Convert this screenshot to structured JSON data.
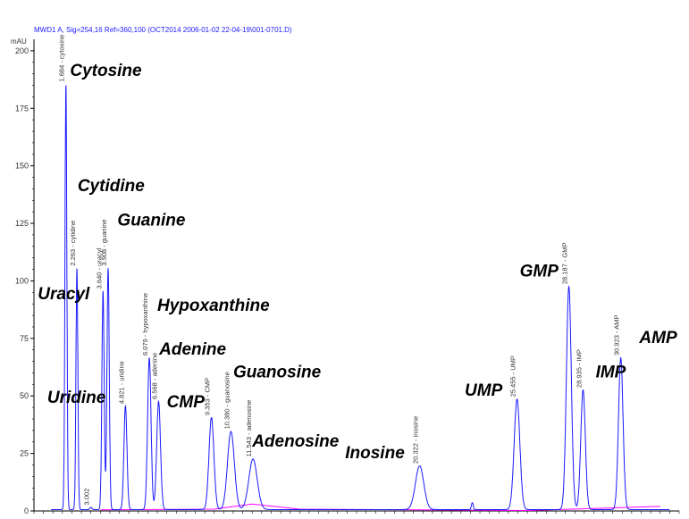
{
  "header": "MWD1 A, Sig=254,16 Ref=360,100 (OCT2014 2006-01-02 22-04-19\\001-0701.D)",
  "colors": {
    "trace": "#1a1aff",
    "baseline": "#ff00ff",
    "axis": "#000000"
  },
  "chart_data": {
    "type": "line",
    "ylabel": "mAU",
    "ylim": [
      0,
      205
    ],
    "xlim": [
      0,
      34
    ],
    "yticks": [
      0,
      25,
      50,
      75,
      100,
      125,
      150,
      175,
      200
    ],
    "ytick_labels": [
      "0",
      "25",
      "50",
      "75",
      "100",
      "125",
      "150",
      "175",
      "200"
    ],
    "peaks": [
      {
        "rt": 1.684,
        "height": 185,
        "width": 0.05,
        "label": "1.684 - cytosine"
      },
      {
        "rt": 2.263,
        "height": 105,
        "width": 0.05,
        "label": "2.263 - cytidine"
      },
      {
        "rt": 3.002,
        "height": 1,
        "width": 0.05,
        "label": "3.002"
      },
      {
        "rt": 3.64,
        "height": 95,
        "width": 0.06,
        "label": "3.640 - uracyl"
      },
      {
        "rt": 3.908,
        "height": 105,
        "width": 0.06,
        "label": "3.908 - guanine"
      },
      {
        "rt": 4.821,
        "height": 45,
        "width": 0.08,
        "label": "4.821 - uridine"
      },
      {
        "rt": 6.079,
        "height": 66,
        "width": 0.09,
        "label": "6.079 - hypoxanthine"
      },
      {
        "rt": 6.568,
        "height": 47,
        "width": 0.1,
        "label": "6.568 - adenine"
      },
      {
        "rt": 9.353,
        "height": 40,
        "width": 0.13,
        "label": "9.353 - CMP"
      },
      {
        "rt": 10.38,
        "height": 34,
        "width": 0.18,
        "label": "10.380 - guanosine"
      },
      {
        "rt": 11.543,
        "height": 22,
        "width": 0.22,
        "label": "11.543 - adenosine"
      },
      {
        "rt": 20.322,
        "height": 19,
        "width": 0.22,
        "label": "20.322 - inosine"
      },
      {
        "rt": 23.1,
        "height": 3,
        "width": 0.05,
        "label": ""
      },
      {
        "rt": 25.455,
        "height": 48,
        "width": 0.15,
        "label": "25.455 - UMP"
      },
      {
        "rt": 28.187,
        "height": 97,
        "width": 0.13,
        "label": "28.187 - GMP"
      },
      {
        "rt": 28.935,
        "height": 52,
        "width": 0.12,
        "label": "28.935 - IMP"
      },
      {
        "rt": 30.923,
        "height": 66,
        "width": 0.12,
        "label": "30.923 - AMP"
      }
    ],
    "annotations": [
      {
        "text": "Cytosine",
        "rt": 1.9,
        "y": 189
      },
      {
        "text": "Cytidine",
        "rt": 2.3,
        "y": 139
      },
      {
        "text": "Guanine",
        "rt": 4.4,
        "y": 124
      },
      {
        "text": "Uracyl",
        "rt": 0.2,
        "y": 92
      },
      {
        "text": "Hypoxanthine",
        "rt": 6.5,
        "y": 87
      },
      {
        "text": "Uridine",
        "rt": 0.7,
        "y": 47
      },
      {
        "text": "Adenine",
        "rt": 6.6,
        "y": 68
      },
      {
        "text": "CMP",
        "rt": 7.0,
        "y": 45
      },
      {
        "text": "Guanosine",
        "rt": 10.5,
        "y": 58
      },
      {
        "text": "Adenosine",
        "rt": 11.5,
        "y": 28
      },
      {
        "text": "Inosine",
        "rt": 16.4,
        "y": 23
      },
      {
        "text": "UMP",
        "rt": 22.7,
        "y": 50
      },
      {
        "text": "GMP",
        "rt": 25.6,
        "y": 102
      },
      {
        "text": "IMP",
        "rt": 29.6,
        "y": 58
      },
      {
        "text": "AMP",
        "rt": 31.9,
        "y": 73
      }
    ]
  }
}
